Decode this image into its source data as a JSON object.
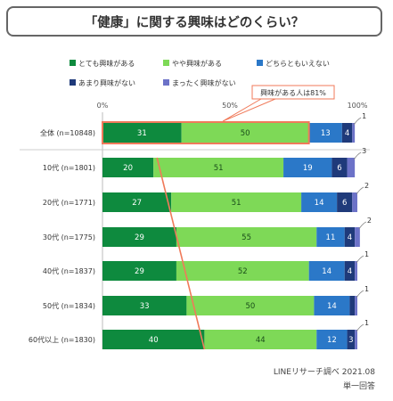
{
  "chart_data": {
    "type": "bar",
    "stacked": true,
    "orientation": "horizontal",
    "title": "「健康」に関する興味はどのくらい？",
    "x_ticks": [
      "0%",
      "50%",
      "100%"
    ],
    "xlim": [
      0,
      100
    ],
    "legend_placement": "top",
    "categories": [
      "全体 (n=10848)",
      "10代 (n=1801)",
      "20代 (n=1771)",
      "30代 (n=1775)",
      "40代 (n=1837)",
      "50代 (n=1834)",
      "60代以上 (n=1830)"
    ],
    "series": [
      {
        "name": "とても興味がある",
        "color": "#0e8a3e",
        "values": [
          31,
          20,
          27,
          29,
          29,
          33,
          40
        ]
      },
      {
        "name": "やや興味がある",
        "color": "#7ed957",
        "values": [
          50,
          51,
          51,
          55,
          52,
          50,
          44
        ]
      },
      {
        "name": "どちらともいえない",
        "color": "#2b78c8",
        "values": [
          13,
          19,
          14,
          11,
          14,
          14,
          12
        ]
      },
      {
        "name": "あまり興味がない",
        "color": "#1f3a7a",
        "values": [
          4,
          6,
          6,
          4,
          4,
          2,
          3
        ]
      },
      {
        "name": "まったく興味がない",
        "color": "#6c72c8",
        "values": [
          1,
          3,
          2,
          2,
          1,
          1,
          1
        ]
      }
    ],
    "callout": "興味がある人は81%",
    "source": "LINEリサーチ調べ 2021.08",
    "note": "単一回答"
  }
}
